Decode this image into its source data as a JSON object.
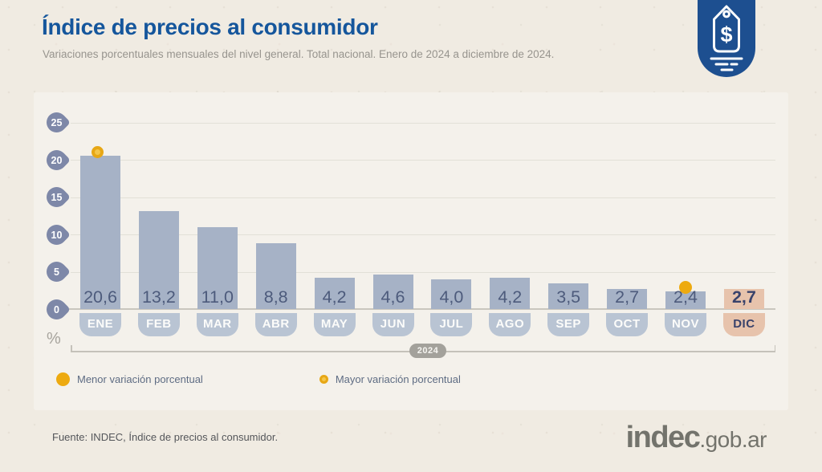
{
  "header": {
    "title": "Índice de precios al consumidor",
    "subtitle": "Variaciones porcentuales mensuales del nivel general. Total nacional. Enero de 2024 a diciembre de 2024."
  },
  "chart_data": {
    "type": "bar",
    "title": "Índice de precios al consumidor",
    "categories": [
      "ENE",
      "FEB",
      "MAR",
      "ABR",
      "MAY",
      "JUN",
      "JUL",
      "AGO",
      "SEP",
      "OCT",
      "NOV",
      "DIC"
    ],
    "values": [
      20.6,
      13.2,
      11.0,
      8.8,
      4.2,
      4.6,
      4.0,
      4.2,
      3.5,
      2.7,
      2.4,
      2.7
    ],
    "value_labels": [
      "20,6",
      "13,2",
      "11,0",
      "8,8",
      "4,2",
      "4,6",
      "4,0",
      "4,2",
      "3,5",
      "2,7",
      "2,4",
      "2,7"
    ],
    "unit_label": "%",
    "yticks": [
      0,
      5,
      10,
      15,
      20,
      25
    ],
    "ylim": [
      0,
      25
    ],
    "grid": true,
    "period_label": "2024",
    "highlight_month": "DIC",
    "max_marker_month": "ENE",
    "min_marker_month": "NOV"
  },
  "legend": {
    "min": {
      "label": "Menor variación porcentual",
      "marker": "solid-yellow-dot"
    },
    "max": {
      "label": "Mayor variación porcentual",
      "marker": "ringed-yellow-dot"
    }
  },
  "footer": {
    "source": "Fuente: INDEC, Índice de precios al consumidor.",
    "logo_main": "indec",
    "logo_suffix": ".gob.ar"
  },
  "icons": {
    "badge": "price-tag-icon"
  },
  "colors": {
    "title_blue": "#15569c",
    "badge_blue": "#1d4f90",
    "bar": "#a6b2c6",
    "bar_highlight": "#e7c3ac",
    "month_pill": "#b9c4d3",
    "value_text": "#4d5b7c",
    "highlight_text": "#39426b",
    "axis_marker": "#7e88a8",
    "dot_yellow": "#edaa10",
    "dot_ring": "#e7a715",
    "year_pill": "#a3a19b",
    "page_bg": "#f0ebe2",
    "panel_bg": "#f4f1eb"
  }
}
